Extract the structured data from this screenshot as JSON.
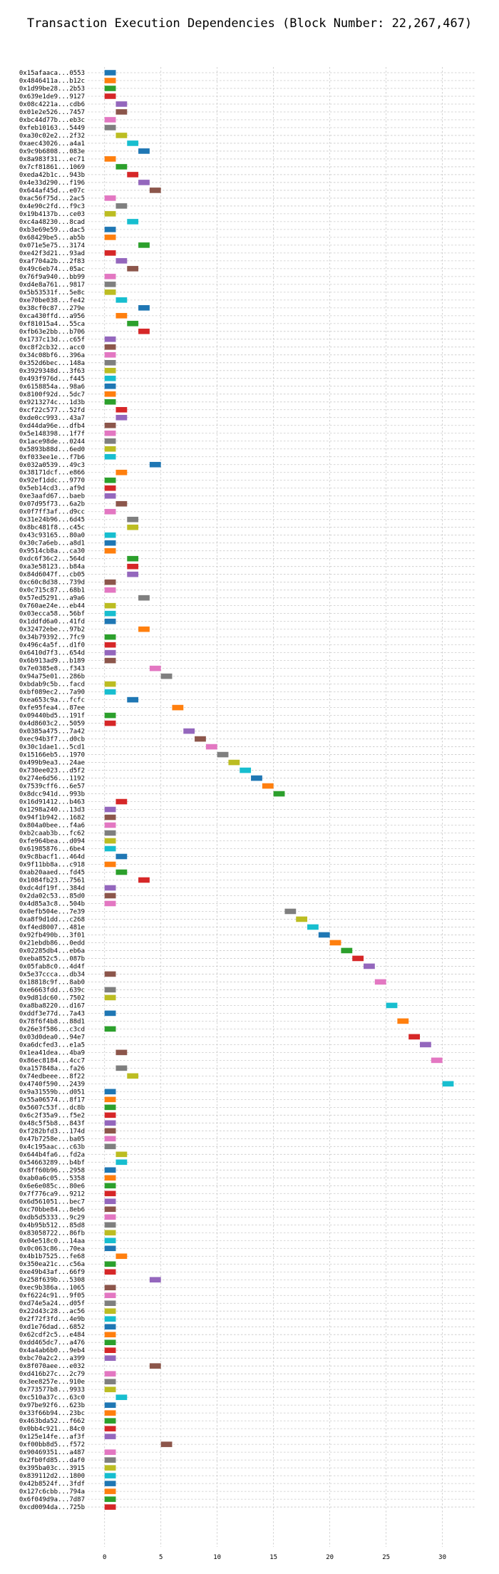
{
  "chart_data": {
    "type": "bar",
    "orientation": "horizontal-gantt",
    "title": "Transaction Execution Dependencies (Block Number: 22,267,467)",
    "xlabel": "",
    "ylabel": "",
    "xlim": [
      -1.5,
      33
    ],
    "x_ticks": [
      0,
      5,
      10,
      15,
      20,
      25,
      30
    ],
    "grid": true,
    "grid_style": "dashed",
    "legend": "none",
    "bar_duration": 1,
    "palette": [
      "#1f77b4",
      "#ff7f0e",
      "#2ca02c",
      "#d62728",
      "#9467bd",
      "#8c564b",
      "#e377c2",
      "#7f7f7f",
      "#bcbd22",
      "#17becf"
    ],
    "categories": [
      "0x15afaaca...0553",
      "0x4846411a...b12c",
      "0x1d99be28...2b53",
      "0x639e1de9...9127",
      "0x08c4221a...cdb6",
      "0x01e2e526...7457",
      "0xbc44d77b...eb3c",
      "0xfeb10163...5449",
      "0xa30c02e2...2f32",
      "0xaec43026...a4a1",
      "0x9c9b6808...083e",
      "0x8a983f31...ec71",
      "0x7cf81861...1069",
      "0xeda42b1c...943b",
      "0x4e33d290...f196",
      "0x644af45d...e07c",
      "0xac56f75d...2ac5",
      "0x4e90c2fd...f9c3",
      "0x19b4137b...ce03",
      "0xc4a48230...8cad",
      "0xb3e69e59...dac5",
      "0x68429be5...ab5b",
      "0x071e5e75...3174",
      "0xe42f3d21...93ad",
      "0xaf704a2b...2f83",
      "0x49c6eb74...05ac",
      "0x76f9a940...bb99",
      "0xd4e8a761...9817",
      "0x5b53531f...5e8c",
      "0xe70be038...fe42",
      "0x38cf0c87...279e",
      "0xca430ffd...a956",
      "0xf81015a4...55ca",
      "0xfb63e2bb...b706",
      "0x1737c13d...c65f",
      "0xc8f2cb32...acc0",
      "0x34c08bf6...396a",
      "0x352d6bec...148a",
      "0x3929348d...3f63",
      "0x493f976d...f445",
      "0x6158854a...98a6",
      "0x8100f92d...5dc7",
      "0x9213274c...1d3b",
      "0xcf22c577...52fd",
      "0xde0cc993...43a7",
      "0xd44da96e...dfb4",
      "0x5e148398...1f7f",
      "0x1ace98de...0244",
      "0x5893b88d...6ed0",
      "0xf033ee1e...f7b6",
      "0x032a0539...49c3",
      "0x38171dcf...e866",
      "0x92ef1ddc...9770",
      "0x5eb14cd3...af9d",
      "0xe3aafd67...baeb",
      "0x07d95f73...6a2b",
      "0x0f7ff3af...d9cc",
      "0x31e24b96...6d45",
      "0x8bc481f8...c45c",
      "0x43c93165...80a0",
      "0x30c7a6eb...a8d1",
      "0x9514cb8a...ca30",
      "0xdc6f36c2...564d",
      "0xa3e58123...b84a",
      "0x84d6047f...cb05",
      "0xc60c8d38...739d",
      "0x0c715c87...68b1",
      "0x57ed5291...a9a6",
      "0x760ae24e...eb44",
      "0x03ecca58...56bf",
      "0x1ddfd6a0...41fd",
      "0x32472ebe...97b2",
      "0x34b79392...7fc9",
      "0x496c4a5f...d1f0",
      "0x6410d7f3...654d",
      "0x6b913ad9...b189",
      "0x7e0385e8...f343",
      "0x94a75e01...286b",
      "0xbdab9c5b...facd",
      "0xbf089ec2...7a90",
      "0xea653c9a...fcfc",
      "0xfe95fea4...87ee",
      "0x09440bd5...191f",
      "0x4d8603c2...5059",
      "0x0385a475...7a42",
      "0xec94b3f7...d0cb",
      "0x30c1dae1...5cd1",
      "0x15166eb5...1970",
      "0x499b9ea3...24ae",
      "0x730ee023...d5f2",
      "0x274e6d56...1192",
      "0x7539cff6...6e57",
      "0x8dcc941d...993b",
      "0x16d91412...b463",
      "0x1298a240...13d3",
      "0x94f1b942...1682",
      "0x804a0bee...f4a6",
      "0xb2caab3b...fc62",
      "0xfe964bea...d094",
      "0x61985876...6be4",
      "0x9c8bacf1...464d",
      "0x9f11bb8a...c918",
      "0xab20aaed...fd45",
      "0x1084fb23...7561",
      "0xdc4df19f...384d",
      "0x2da02c53...85d0",
      "0x4d85a3c8...504b",
      "0x0efb504e...7e39",
      "0xa8f9d1dd...c268",
      "0xf4ed8007...481e",
      "0x92fb490b...3f01",
      "0x21ebdb86...0edd",
      "0x02285db4...eb6a",
      "0xeba852c5...087b",
      "0x05fab8c0...4d4f",
      "0x5e37ccca...db34",
      "0x18818c9f...8ab0",
      "0xe6663fdd...639c",
      "0x9d81dc60...7502",
      "0xa8ba8220...d167",
      "0xddf3e77d...7a43",
      "0x78f6f4b8...88d1",
      "0x26e3f586...c3cd",
      "0x03d0dea0...94e7",
      "0xa6dcfed3...e1a5",
      "0x1ea41dea...4ba9",
      "0x86ec8184...4cc7",
      "0xa157848a...fa26",
      "0x74edbeee...8f22",
      "0x4740f590...2439",
      "0x9a31559b...d051",
      "0x55a06574...8f17",
      "0x5607c53f...dc8b",
      "0x6c2f35a9...f5e2",
      "0x48c5f5b8...843f",
      "0xf282bfd3...174d",
      "0x47b7258e...ba05",
      "0x4c195aac...c63b",
      "0x644b4fa6...fd2a",
      "0x54663289...b4bf",
      "0x8ff60b96...2958",
      "0xab0a6c05...5358",
      "0x6e6e085c...80e6",
      "0x7f776ca9...9212",
      "0x6d561051...bec7",
      "0xc70bbe84...8eb6",
      "0xdb5d5333...9c29",
      "0x4b95b512...85d8",
      "0x83058722...86fb",
      "0x04e518c0...14aa",
      "0x0c063c86...70ea",
      "0x4b1b7525...fe68",
      "0x350ea21c...c56a",
      "0xe49b43af...66f9",
      "0x258f639b...5308",
      "0xec9b386a...1065",
      "0xf6224c91...9f05",
      "0xd74e5a24...d05f",
      "0x22d43c28...ac56",
      "0x2f72f3fd...4e9b",
      "0xd1e76dad...6852",
      "0x62cdf2c5...e484",
      "0xdd465dc7...a476",
      "0x4a4ab6b0...9eb4",
      "0xbc70a2c2...a399",
      "0x8f070aee...e032",
      "0xd416b27c...2c79",
      "0x3ee8257e...910e",
      "0x773577b8...9933",
      "0xc510a37c...63c0",
      "0x97be92f6...623b",
      "0x33f66b94...23bc",
      "0x463bda52...f662",
      "0x0bb4c921...84c0",
      "0x125e14fe...af3f",
      "0xf00bb8d5...f572",
      "0x90469351...a487",
      "0x2fb0fd85...daf0",
      "0x395ba03c...3915",
      "0x839112d2...1800",
      "0x42b8524f...3fdf",
      "0x127c6cbb...794a",
      "0x6f049d9a...7d87",
      "0xcd0094da...725b"
    ],
    "start": [
      0,
      0,
      0,
      0,
      1,
      1,
      0,
      0,
      1,
      2,
      3,
      0,
      1,
      2,
      3,
      4,
      0,
      1,
      0,
      2,
      0,
      0,
      3,
      0,
      1,
      2,
      0,
      0,
      0,
      1,
      3,
      1,
      2,
      3,
      0,
      0,
      0,
      0,
      0,
      0,
      0,
      0,
      0,
      1,
      1,
      0,
      0,
      0,
      0,
      0,
      4,
      1,
      0,
      0,
      0,
      1,
      0,
      2,
      2,
      0,
      0,
      0,
      2,
      2,
      2,
      0,
      0,
      3,
      0,
      0,
      0,
      3,
      0,
      0,
      0,
      0,
      4,
      5,
      0,
      0,
      2,
      6,
      0,
      0,
      7,
      8,
      9,
      10,
      11,
      12,
      13,
      14,
      15,
      1,
      0,
      0,
      0,
      0,
      0,
      0,
      1,
      0,
      1,
      3,
      0,
      0,
      0,
      16,
      17,
      18,
      19,
      20,
      21,
      22,
      23,
      0,
      24,
      0,
      0,
      25,
      0,
      26,
      0,
      27,
      28,
      1,
      29,
      1,
      2,
      30,
      0,
      0,
      0,
      0,
      0,
      0,
      0,
      0,
      1,
      1,
      0,
      0,
      0,
      0,
      0,
      0,
      0,
      0,
      0,
      0,
      0,
      1,
      0,
      0,
      4,
      0,
      0,
      0,
      0,
      0,
      0,
      0,
      0,
      0,
      0,
      4,
      0,
      0,
      0,
      1,
      0,
      0,
      0,
      0,
      0,
      5,
      0,
      0,
      0,
      0,
      0,
      0,
      0,
      0
    ],
    "color_index": [
      0,
      1,
      2,
      3,
      4,
      5,
      6,
      7,
      8,
      9,
      0,
      1,
      2,
      3,
      4,
      5,
      6,
      7,
      8,
      9,
      0,
      1,
      2,
      3,
      4,
      5,
      6,
      7,
      8,
      9,
      0,
      1,
      2,
      3,
      4,
      5,
      6,
      7,
      8,
      9,
      0,
      1,
      2,
      3,
      4,
      5,
      6,
      7,
      8,
      9,
      0,
      1,
      2,
      3,
      4,
      5,
      6,
      7,
      8,
      9,
      0,
      1,
      2,
      3,
      4,
      5,
      6,
      7,
      8,
      9,
      0,
      1,
      2,
      3,
      4,
      5,
      6,
      7,
      8,
      9,
      0,
      1,
      2,
      3,
      4,
      5,
      6,
      7,
      8,
      9,
      0,
      1,
      2,
      3,
      4,
      5,
      6,
      7,
      8,
      9,
      0,
      1,
      2,
      3,
      4,
      5,
      6,
      7,
      8,
      9,
      0,
      1,
      2,
      3,
      4,
      5,
      6,
      7,
      8,
      9,
      0,
      1,
      2,
      3,
      4,
      5,
      6,
      7,
      8,
      9,
      0,
      1,
      2,
      3,
      4,
      5,
      6,
      7,
      8,
      9,
      0,
      1,
      2,
      3,
      4,
      5,
      6,
      7,
      8,
      9,
      0,
      1,
      2,
      3,
      4,
      5,
      6,
      7,
      8,
      9,
      0,
      1,
      2,
      3,
      4,
      5,
      6,
      7,
      8,
      9,
      0,
      1,
      2,
      3,
      4,
      5,
      6,
      7,
      8,
      9,
      0,
      1,
      2,
      3
    ]
  }
}
